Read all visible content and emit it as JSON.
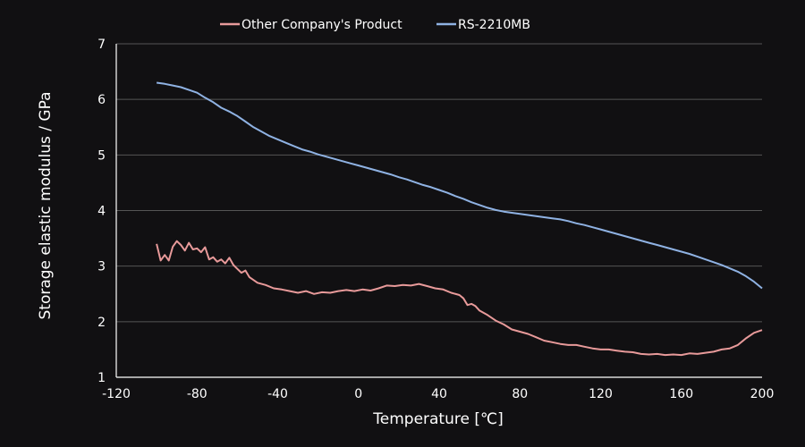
{
  "chart_data": {
    "type": "line",
    "title": "",
    "xlabel": "Temperature [℃]",
    "ylabel": "Storage elastic modulus / GPa",
    "xlim": [
      -120,
      200
    ],
    "ylim": [
      1,
      7
    ],
    "xticks": [
      -120,
      -80,
      -40,
      0,
      40,
      80,
      120,
      160,
      200
    ],
    "yticks": [
      1,
      2,
      3,
      4,
      5,
      6,
      7
    ],
    "xtick_labels": [
      "-120",
      "-80",
      "-40",
      "0",
      "40",
      "80",
      "120",
      "160",
      "200"
    ],
    "ytick_labels": [
      "1",
      "2",
      "3",
      "4",
      "5",
      "6",
      "7"
    ],
    "grid": true,
    "legend_position": "top",
    "background_color": "#111012",
    "grid_color": "#555555",
    "series": [
      {
        "name": "Other Company's Product",
        "color": "#e89a9a",
        "x": [
          -100,
          -98,
          -96,
          -94,
          -92,
          -90,
          -88,
          -86,
          -84,
          -82,
          -80,
          -78,
          -76,
          -74,
          -72,
          -70,
          -68,
          -66,
          -64,
          -62,
          -60,
          -58,
          -56,
          -54,
          -52,
          -50,
          -46,
          -42,
          -38,
          -34,
          -30,
          -26,
          -22,
          -18,
          -14,
          -10,
          -6,
          -2,
          2,
          6,
          10,
          14,
          18,
          22,
          26,
          30,
          34,
          38,
          42,
          46,
          50,
          52,
          54,
          56,
          58,
          60,
          64,
          68,
          72,
          76,
          80,
          84,
          88,
          92,
          96,
          100,
          104,
          108,
          112,
          116,
          120,
          124,
          128,
          132,
          136,
          140,
          144,
          148,
          152,
          156,
          160,
          164,
          168,
          172,
          176,
          180,
          184,
          188,
          192,
          196,
          200
        ],
        "y": [
          3.4,
          3.1,
          3.2,
          3.1,
          3.35,
          3.45,
          3.38,
          3.28,
          3.42,
          3.3,
          3.32,
          3.25,
          3.34,
          3.12,
          3.16,
          3.08,
          3.12,
          3.05,
          3.15,
          3.02,
          2.95,
          2.88,
          2.92,
          2.8,
          2.75,
          2.7,
          2.66,
          2.6,
          2.58,
          2.55,
          2.52,
          2.55,
          2.5,
          2.53,
          2.52,
          2.55,
          2.57,
          2.55,
          2.58,
          2.56,
          2.6,
          2.65,
          2.64,
          2.66,
          2.65,
          2.68,
          2.64,
          2.6,
          2.58,
          2.52,
          2.48,
          2.42,
          2.3,
          2.32,
          2.28,
          2.2,
          2.12,
          2.02,
          1.95,
          1.86,
          1.82,
          1.78,
          1.72,
          1.66,
          1.63,
          1.6,
          1.58,
          1.58,
          1.55,
          1.52,
          1.5,
          1.5,
          1.48,
          1.46,
          1.45,
          1.42,
          1.41,
          1.42,
          1.4,
          1.41,
          1.4,
          1.43,
          1.42,
          1.44,
          1.46,
          1.5,
          1.52,
          1.58,
          1.7,
          1.8,
          1.85
        ]
      },
      {
        "name": "RS-2210MB",
        "color": "#8fb2e3",
        "x": [
          -100,
          -96,
          -92,
          -88,
          -84,
          -80,
          -76,
          -72,
          -68,
          -64,
          -60,
          -56,
          -52,
          -48,
          -44,
          -40,
          -36,
          -32,
          -28,
          -24,
          -20,
          -16,
          -12,
          -8,
          -4,
          0,
          4,
          8,
          12,
          16,
          20,
          24,
          28,
          32,
          36,
          40,
          44,
          48,
          52,
          56,
          60,
          64,
          68,
          72,
          76,
          80,
          84,
          88,
          92,
          96,
          100,
          104,
          108,
          112,
          116,
          120,
          124,
          128,
          132,
          136,
          140,
          144,
          148,
          152,
          156,
          160,
          164,
          168,
          172,
          176,
          180,
          184,
          188,
          192,
          196,
          200
        ],
        "y": [
          6.3,
          6.28,
          6.25,
          6.22,
          6.17,
          6.12,
          6.03,
          5.95,
          5.85,
          5.78,
          5.7,
          5.6,
          5.5,
          5.42,
          5.34,
          5.28,
          5.22,
          5.16,
          5.1,
          5.06,
          5.01,
          4.97,
          4.93,
          4.89,
          4.85,
          4.81,
          4.77,
          4.73,
          4.69,
          4.65,
          4.6,
          4.56,
          4.51,
          4.46,
          4.42,
          4.37,
          4.32,
          4.26,
          4.21,
          4.15,
          4.1,
          4.05,
          4.01,
          3.98,
          3.96,
          3.94,
          3.92,
          3.9,
          3.88,
          3.86,
          3.84,
          3.81,
          3.77,
          3.74,
          3.7,
          3.66,
          3.62,
          3.58,
          3.54,
          3.5,
          3.46,
          3.42,
          3.38,
          3.34,
          3.3,
          3.26,
          3.22,
          3.17,
          3.12,
          3.07,
          3.02,
          2.96,
          2.9,
          2.82,
          2.72,
          2.6
        ]
      }
    ]
  }
}
